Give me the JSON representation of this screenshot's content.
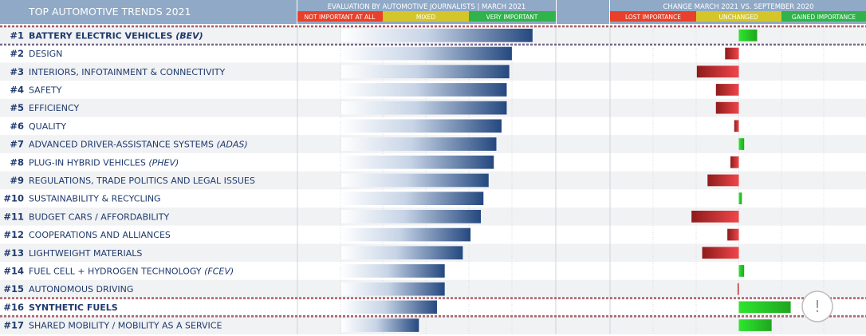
{
  "header": {
    "title": "TOP AUTOMOTIVE TRENDS 2021",
    "evaluation_title": "EVALUATION BY AUTOMOTIVE JOURNALISTS | MARCH 2021",
    "evaluation_scale": [
      "NOT IMPORTANT AT ALL",
      "MIXED",
      "VERY IMPORTANT"
    ],
    "change_title": "CHANGE MARCH 2021 VS. SEPTEMBER 2020",
    "change_scale": [
      "LOST IMPORTANCE",
      "UNCHANGED",
      "GAINED IMPORTANCE"
    ]
  },
  "colors": {
    "header_bg": "#8fa9c6",
    "label_navy": "#1f3a6e",
    "rank1_green": "#3cb371",
    "scale_red": "#e8402a",
    "scale_yellow": "#d4c62a",
    "scale_green": "#2fb34a",
    "highlight_line_blue": "#2c4a8a",
    "highlight_line_red": "#c0392b",
    "row_alt": "#f1f2f4"
  },
  "icons": {
    "alert": "exclamation-circle-icon",
    "alert_text": "!"
  },
  "chart_data": {
    "type": "bar",
    "title": "TOP AUTOMOTIVE TRENDS 2021",
    "categories": [
      {
        "rank": "#1",
        "name": "BATTERY ELECTRIC VEHICLES",
        "abbr": "(BEV)",
        "bold": true
      },
      {
        "rank": "#2",
        "name": "DESIGN",
        "abbr": "",
        "bold": false
      },
      {
        "rank": "#3",
        "name": "INTERIORS, INFOTAINMENT & CONNECTIVITY",
        "abbr": "",
        "bold": false
      },
      {
        "rank": "#4",
        "name": "SAFETY",
        "abbr": "",
        "bold": false
      },
      {
        "rank": "#5",
        "name": "EFFICIENCY",
        "abbr": "",
        "bold": false
      },
      {
        "rank": "#6",
        "name": "QUALITY",
        "abbr": "",
        "bold": false
      },
      {
        "rank": "#7",
        "name": "ADVANCED DRIVER-ASSISTANCE SYSTEMS",
        "abbr": "(ADAS)",
        "bold": false
      },
      {
        "rank": "#8",
        "name": "PLUG-IN HYBRID VEHICLES",
        "abbr": "(PHEV)",
        "bold": false
      },
      {
        "rank": "#9",
        "name": "REGULATIONS, TRADE POLITICS AND LEGAL ISSUES",
        "abbr": "",
        "bold": false
      },
      {
        "rank": "#10",
        "name": "SUSTAINABILITY & RECYCLING",
        "abbr": "",
        "bold": false
      },
      {
        "rank": "#11",
        "name": "BUDGET CARS / AFFORDABILITY",
        "abbr": "",
        "bold": false
      },
      {
        "rank": "#12",
        "name": "COOPERATIONS AND ALLIANCES",
        "abbr": "",
        "bold": false
      },
      {
        "rank": "#13",
        "name": "LIGHTWEIGHT MATERIALS",
        "abbr": "",
        "bold": false
      },
      {
        "rank": "#14",
        "name": "FUEL CELL + HYDROGEN TECHNOLOGY",
        "abbr": "(FCEV)",
        "bold": false
      },
      {
        "rank": "#15",
        "name": "AUTONOMOUS DRIVING",
        "abbr": "",
        "bold": false
      },
      {
        "rank": "#16",
        "name": "SYNTHETIC FUELS",
        "abbr": "",
        "bold": true
      },
      {
        "rank": "#17",
        "name": "SHARED MOBILITY / MOBILITY AS A SERVICE",
        "abbr": "",
        "bold": false
      }
    ],
    "series": [
      {
        "values": [
          0.91,
          0.83,
          0.82,
          0.81,
          0.81,
          0.79,
          0.77,
          0.76,
          0.74,
          0.72,
          0.71,
          0.67,
          0.64,
          0.57,
          0.57,
          0.54,
          0.47
        ]
      },
      {
        "values": [
          0.24,
          -0.18,
          -0.55,
          -0.3,
          -0.3,
          -0.06,
          0.07,
          -0.11,
          -0.41,
          0.04,
          -0.62,
          -0.15,
          -0.48,
          0.07,
          -0.01,
          0.68,
          0.43
        ]
      }
    ],
    "evaluation_range": [
      0,
      1
    ],
    "change_range": [
      -1,
      1
    ],
    "highlighted_ranks": [
      "#1",
      "#16"
    ],
    "grid": true
  }
}
